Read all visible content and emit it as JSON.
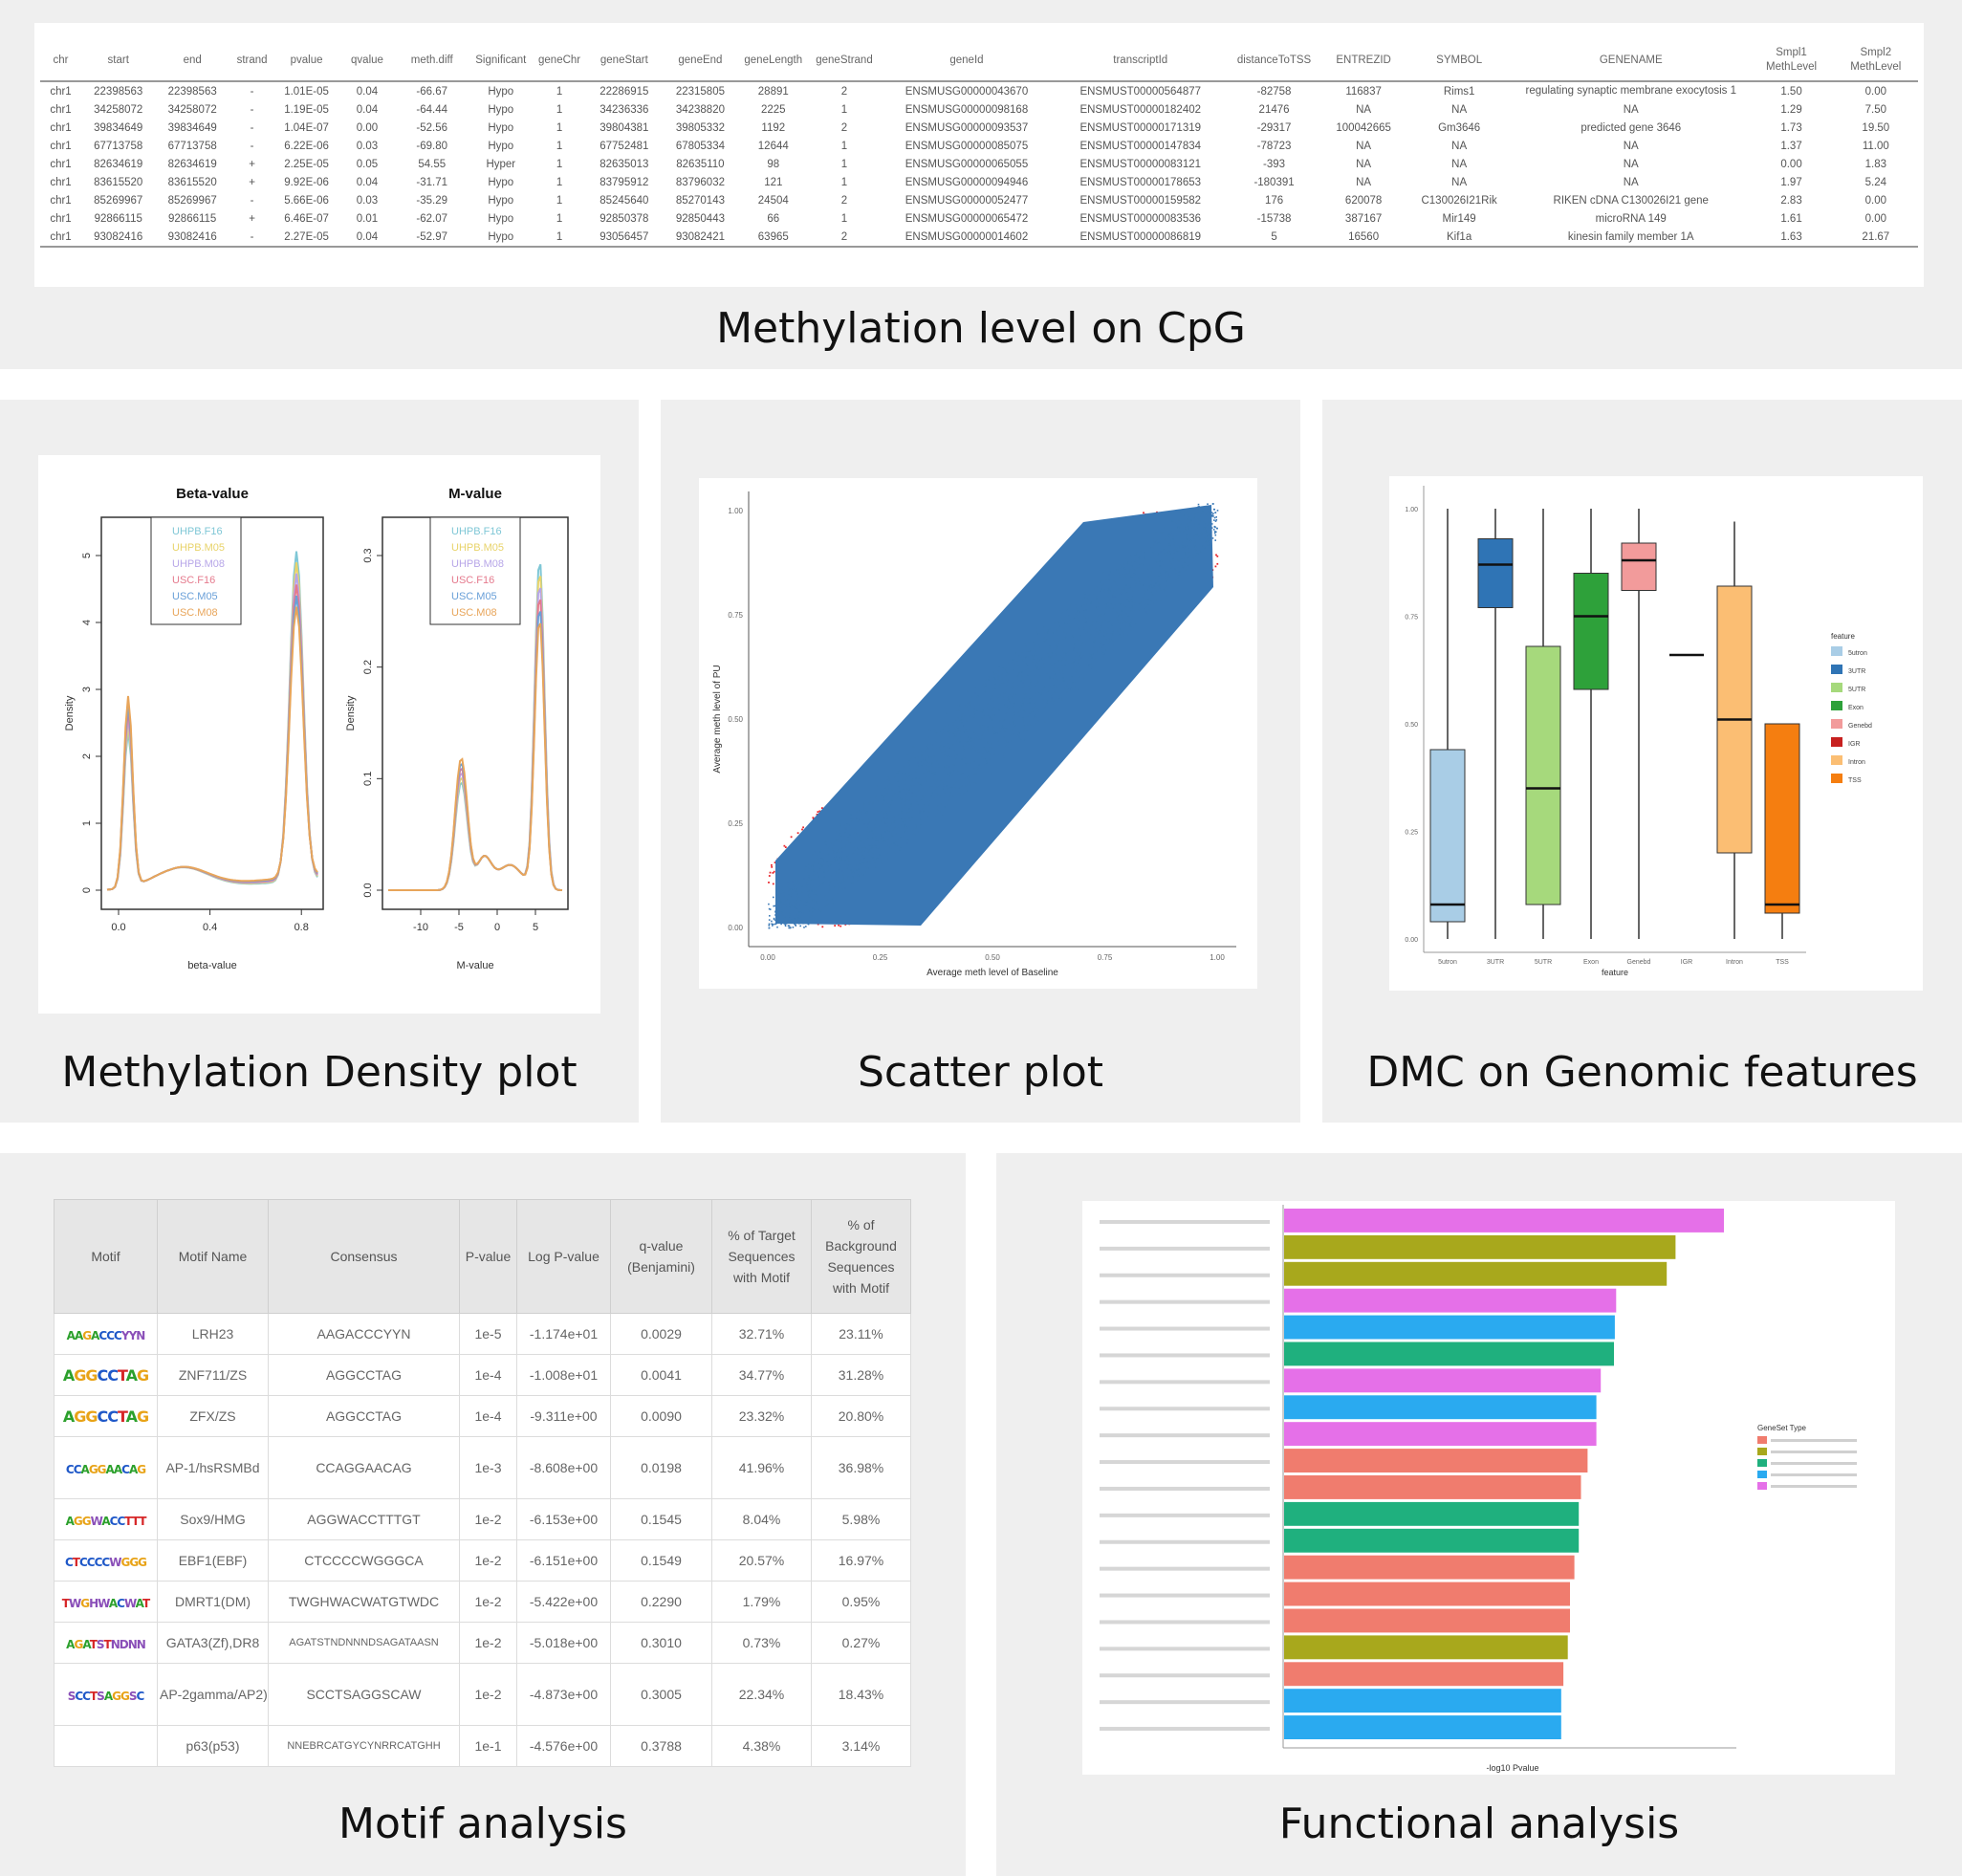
{
  "panels": {
    "cpg": "Methylation level on CpG",
    "density": "Methylation Density plot",
    "scatter": "Scatter plot",
    "dmc": "DMC on Genomic features",
    "motif": "Motif analysis",
    "functional": "Functional analysis"
  },
  "cpg_table": {
    "headers": [
      "chr",
      "start",
      "end",
      "strand",
      "pvalue",
      "qvalue",
      "meth.diff",
      "Significant",
      "geneChr",
      "geneStart",
      "geneEnd",
      "geneLength",
      "geneStrand",
      "geneId",
      "transcriptId",
      "distanceToTSS",
      "ENTREZID",
      "SYMBOL",
      "GENENAME",
      "Smpl1 MethLevel",
      "Smpl2 MethLevel"
    ],
    "rows": [
      [
        "chr1",
        "22398563",
        "22398563",
        "-",
        "1.01E-05",
        "0.04",
        "-66.67",
        "Hypo",
        "1",
        "22286915",
        "22315805",
        "28891",
        "2",
        "ENSMUSG00000043670",
        "ENSMUST00000564877",
        "-82758",
        "116837",
        "Rims1",
        "regulating synaptic membrane exocytosis 1",
        "1.50",
        "0.00"
      ],
      [
        "chr1",
        "34258072",
        "34258072",
        "-",
        "1.19E-05",
        "0.04",
        "-64.44",
        "Hypo",
        "1",
        "34236336",
        "34238820",
        "2225",
        "1",
        "ENSMUSG00000098168",
        "ENSMUST00000182402",
        "21476",
        "NA",
        "NA",
        "NA",
        "1.29",
        "7.50"
      ],
      [
        "chr1",
        "39834649",
        "39834649",
        "-",
        "1.04E-07",
        "0.00",
        "-52.56",
        "Hypo",
        "1",
        "39804381",
        "39805332",
        "1192",
        "2",
        "ENSMUSG00000093537",
        "ENSMUST00000171319",
        "-29317",
        "100042665",
        "Gm3646",
        "predicted gene 3646",
        "1.73",
        "19.50"
      ],
      [
        "chr1",
        "67713758",
        "67713758",
        "-",
        "6.22E-06",
        "0.03",
        "-69.80",
        "Hypo",
        "1",
        "67752481",
        "67805334",
        "12644",
        "1",
        "ENSMUSG00000085075",
        "ENSMUST00000147834",
        "-78723",
        "NA",
        "NA",
        "NA",
        "1.37",
        "11.00"
      ],
      [
        "chr1",
        "82634619",
        "82634619",
        "+",
        "2.25E-05",
        "0.05",
        "54.55",
        "Hyper",
        "1",
        "82635013",
        "82635110",
        "98",
        "1",
        "ENSMUSG00000065055",
        "ENSMUST00000083121",
        "-393",
        "NA",
        "NA",
        "NA",
        "0.00",
        "1.83"
      ],
      [
        "chr1",
        "83615520",
        "83615520",
        "+",
        "9.92E-06",
        "0.04",
        "-31.71",
        "Hypo",
        "1",
        "83795912",
        "83796032",
        "121",
        "1",
        "ENSMUSG00000094946",
        "ENSMUST00000178653",
        "-180391",
        "NA",
        "NA",
        "NA",
        "1.97",
        "5.24"
      ],
      [
        "chr1",
        "85269967",
        "85269967",
        "-",
        "5.66E-06",
        "0.03",
        "-35.29",
        "Hypo",
        "1",
        "85245640",
        "85270143",
        "24504",
        "2",
        "ENSMUSG00000052477",
        "ENSMUST00000159582",
        "176",
        "620078",
        "C130026I21Rik",
        "RIKEN cDNA C130026I21 gene",
        "2.83",
        "0.00"
      ],
      [
        "chr1",
        "92866115",
        "92866115",
        "+",
        "6.46E-07",
        "0.01",
        "-62.07",
        "Hypo",
        "1",
        "92850378",
        "92850443",
        "66",
        "1",
        "ENSMUSG00000065472",
        "ENSMUST00000083536",
        "-15738",
        "387167",
        "Mir149",
        "microRNA 149",
        "1.61",
        "0.00"
      ],
      [
        "chr1",
        "93082416",
        "93082416",
        "-",
        "2.27E-05",
        "0.04",
        "-52.97",
        "Hypo",
        "1",
        "93056457",
        "93082421",
        "63965",
        "2",
        "ENSMUSG00000014602",
        "ENSMUST00000086819",
        "5",
        "16560",
        "Kif1a",
        "kinesin family member 1A",
        "1.63",
        "21.67"
      ]
    ]
  },
  "density": {
    "beta_title": "Beta-value",
    "m_title": "M-value",
    "ylabel": "Density",
    "beta_xlabel": "beta-value",
    "m_xlabel": "M-value",
    "beta_xticks": [
      "0.0",
      "0.4",
      "0.8"
    ],
    "beta_yticks": [
      "0",
      "1",
      "2",
      "3",
      "4",
      "5"
    ],
    "m_xticks": [
      "-10",
      "-5",
      "0",
      "5"
    ],
    "m_yticks": [
      "0.0",
      "0.1",
      "0.2",
      "0.3"
    ],
    "legend": [
      "UHPB.F16",
      "UHPB.M05",
      "UHPB.M08",
      "USC.F16",
      "USC.M05",
      "USC.M08"
    ],
    "colors": [
      "#7fc7d6",
      "#e8d36a",
      "#b7a6e8",
      "#e57a8d",
      "#6aa0d8",
      "#e8a55a"
    ]
  },
  "scatter": {
    "xlabel": "Average meth level of Baseline",
    "ylabel": "Average meth level of PU",
    "ticks": [
      "0.00",
      "0.25",
      "0.50",
      "0.75",
      "1.00"
    ],
    "main_color": "#3a78b5",
    "sig_color": "#e8262b"
  },
  "chart_data": {
    "type": "box",
    "xlabel": "feature",
    "legend_title": "feature",
    "yticks": [
      "0.00",
      "0.25",
      "0.50",
      "0.75",
      "1.00"
    ],
    "categories": [
      {
        "name": "5utron",
        "color": "#a9cde6",
        "q1": 0.04,
        "median": 0.08,
        "q3": 0.44,
        "lo": 0.0,
        "hi": 1.0
      },
      {
        "name": "3UTR",
        "color": "#2f74b5",
        "q1": 0.77,
        "median": 0.87,
        "q3": 0.93,
        "lo": 0.0,
        "hi": 1.0
      },
      {
        "name": "5UTR",
        "color": "#a6d97c",
        "q1": 0.08,
        "median": 0.35,
        "q3": 0.68,
        "lo": 0.0,
        "hi": 1.0
      },
      {
        "name": "Exon",
        "color": "#2ea13a",
        "q1": 0.58,
        "median": 0.75,
        "q3": 0.85,
        "lo": 0.0,
        "hi": 1.0
      },
      {
        "name": "Genebd",
        "color": "#f29b9b",
        "q1": 0.81,
        "median": 0.88,
        "q3": 0.92,
        "lo": 0.0,
        "hi": 1.0
      },
      {
        "name": "IGR",
        "color": "#c7201f",
        "q1": 0.66,
        "median": 0.66,
        "q3": 0.66,
        "lo": 0.66,
        "hi": 0.66
      },
      {
        "name": "Intron",
        "color": "#fbbe73",
        "q1": 0.2,
        "median": 0.51,
        "q3": 0.82,
        "lo": 0.0,
        "hi": 0.97
      },
      {
        "name": "TSS",
        "color": "#f57e10",
        "q1": 0.06,
        "median": 0.08,
        "q3": 0.5,
        "lo": 0.0,
        "hi": 0.5
      }
    ]
  },
  "motif": {
    "headers": [
      "Motif",
      "Motif Name",
      "Consensus",
      "P-value",
      "Log P-value",
      "q-value (Benjamini)",
      "% of Target Sequences with Motif",
      "% of Background Sequences with Motif"
    ],
    "rows": [
      {
        "logo": "AAGACCCYYN",
        "name": "LRH23",
        "consensus": "AAGACCCYYN",
        "p": "1e-5",
        "logp": "-1.174e+01",
        "q": "0.0029",
        "target": "32.71%",
        "bg": "23.11%"
      },
      {
        "logo": "AGGCCTAG",
        "name": "ZNF711/ZS",
        "consensus": "AGGCCTAG",
        "p": "1e-4",
        "logp": "-1.008e+01",
        "q": "0.0041",
        "target": "34.77%",
        "bg": "31.28%"
      },
      {
        "logo": "AGGCCTAG",
        "name": "ZFX/ZS",
        "consensus": "AGGCCTAG",
        "p": "1e-4",
        "logp": "-9.311e+00",
        "q": "0.0090",
        "target": "23.32%",
        "bg": "20.80%"
      },
      {
        "logo": "CCAGGAACAG",
        "name": "AP-1/hsRSMBd",
        "consensus": "CCAGGAACAG",
        "p": "1e-3",
        "logp": "-8.608e+00",
        "q": "0.0198",
        "target": "41.96%",
        "bg": "36.98%"
      },
      {
        "logo": "AGGWACCTTTGT",
        "name": "Sox9/HMG",
        "consensus": "AGGWACCTTTGT",
        "p": "1e-2",
        "logp": "-6.153e+00",
        "q": "0.1545",
        "target": "8.04%",
        "bg": "5.98%"
      },
      {
        "logo": "CTCCCCWGGGCA",
        "name": "EBF1(EBF)",
        "consensus": "CTCCCCWGGGCA",
        "p": "1e-2",
        "logp": "-6.151e+00",
        "q": "0.1549",
        "target": "20.57%",
        "bg": "16.97%"
      },
      {
        "logo": "TWGHWACWATGTWDC",
        "name": "DMRT1(DM)",
        "consensus": "TWGHWACWATGTWDC",
        "p": "1e-2",
        "logp": "-5.422e+00",
        "q": "0.2290",
        "target": "1.79%",
        "bg": "0.95%"
      },
      {
        "logo": "AGATSTNDNNNDSAGATAASN",
        "name": "GATA3(Zf),DR8",
        "consensus": "AGATSTNDNNNDSAGATAASN",
        "p": "1e-2",
        "logp": "-5.018e+00",
        "q": "0.3010",
        "target": "0.73%",
        "bg": "0.27%"
      },
      {
        "logo": "SCCTSAGGSCAW",
        "name": "AP-2gamma/AP2)",
        "consensus": "SCCTSAGGSCAW",
        "p": "1e-2",
        "logp": "-4.873e+00",
        "q": "0.3005",
        "target": "22.34%",
        "bg": "18.43%"
      },
      {
        "logo": "",
        "name": "p63(p53)",
        "consensus": "NNEBRCATGYCYNRRCATGHH",
        "p": "1e-1",
        "logp": "-4.576e+00",
        "q": "0.3788",
        "target": "4.38%",
        "bg": "3.14%"
      }
    ]
  },
  "functional": {
    "xlabel": "-log10 Pvalue",
    "legend_title": "GeneSet Type",
    "legend_colors": [
      "#f07c6e",
      "#a8a81c",
      "#1fb07e",
      "#2aaaf0",
      "#e570e8"
    ],
    "bars": [
      {
        "value": 1.0,
        "color": "#e570e8"
      },
      {
        "value": 0.89,
        "color": "#a8a81c"
      },
      {
        "value": 0.87,
        "color": "#a8a81c"
      },
      {
        "value": 0.755,
        "color": "#e570e8"
      },
      {
        "value": 0.752,
        "color": "#2aaaf0"
      },
      {
        "value": 0.75,
        "color": "#1fb07e"
      },
      {
        "value": 0.72,
        "color": "#e570e8"
      },
      {
        "value": 0.71,
        "color": "#2aaaf0"
      },
      {
        "value": 0.71,
        "color": "#e570e8"
      },
      {
        "value": 0.69,
        "color": "#f07c6e"
      },
      {
        "value": 0.675,
        "color": "#f07c6e"
      },
      {
        "value": 0.67,
        "color": "#1fb07e"
      },
      {
        "value": 0.67,
        "color": "#1fb07e"
      },
      {
        "value": 0.66,
        "color": "#f07c6e"
      },
      {
        "value": 0.65,
        "color": "#f07c6e"
      },
      {
        "value": 0.65,
        "color": "#f07c6e"
      },
      {
        "value": 0.645,
        "color": "#a8a81c"
      },
      {
        "value": 0.635,
        "color": "#f07c6e"
      },
      {
        "value": 0.63,
        "color": "#2aaaf0"
      },
      {
        "value": 0.63,
        "color": "#2aaaf0"
      }
    ]
  }
}
